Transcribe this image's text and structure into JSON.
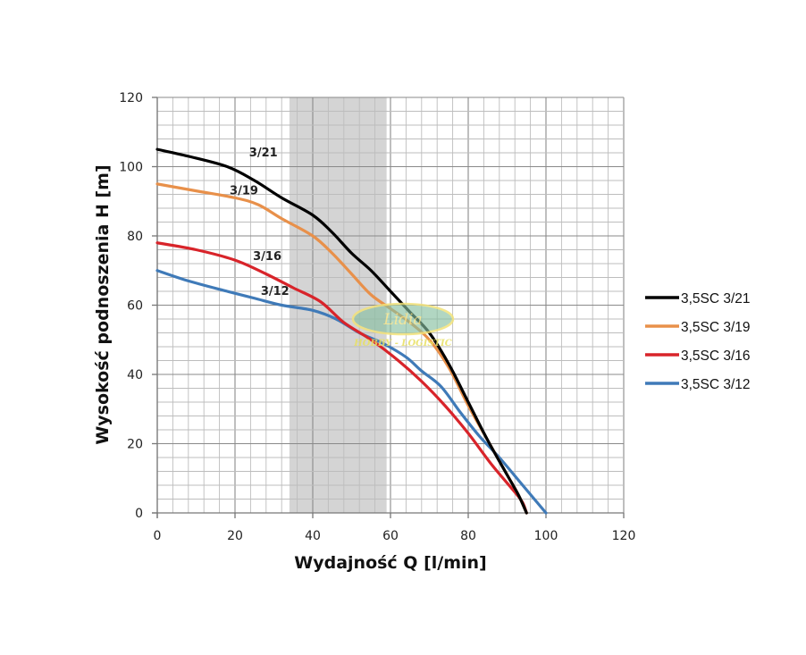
{
  "chart_data": {
    "type": "line",
    "title": "",
    "xlabel": "Wydajność Q [l/min]",
    "ylabel": "Wysokość podnoszenia H [m]",
    "xlim": [
      0,
      120
    ],
    "ylim": [
      0,
      120
    ],
    "x_ticks": [
      "0",
      "20",
      "40",
      "60",
      "80",
      "100",
      "120"
    ],
    "y_ticks": [
      "0",
      "20",
      "40",
      "60",
      "80",
      "100",
      "120"
    ],
    "grid": true,
    "grid_minor_step": 4,
    "shaded_range": [
      34,
      59
    ],
    "legend_position": "right",
    "series": [
      {
        "name": "3,5SC 3/21",
        "label": "3/21",
        "color": "#000000",
        "points": [
          [
            0,
            105
          ],
          [
            8,
            103
          ],
          [
            18,
            100
          ],
          [
            25,
            96
          ],
          [
            32,
            91
          ],
          [
            40,
            86
          ],
          [
            45,
            81
          ],
          [
            50,
            75
          ],
          [
            55,
            70
          ],
          [
            60,
            64
          ],
          [
            65,
            58
          ],
          [
            70,
            52
          ],
          [
            75,
            43
          ],
          [
            80,
            32
          ],
          [
            85,
            21
          ],
          [
            90,
            11
          ],
          [
            93,
            5
          ],
          [
            95,
            0
          ]
        ]
      },
      {
        "name": "3,5SC 3/19",
        "label": "3/19",
        "color": "#e8904a",
        "points": [
          [
            0,
            95
          ],
          [
            10,
            93
          ],
          [
            20,
            91
          ],
          [
            26,
            89
          ],
          [
            32,
            85
          ],
          [
            40,
            80
          ],
          [
            45,
            75
          ],
          [
            50,
            69
          ],
          [
            55,
            63
          ],
          [
            60,
            59
          ],
          [
            65,
            55
          ],
          [
            70,
            50
          ],
          [
            75,
            42
          ],
          [
            80,
            31
          ],
          [
            85,
            21
          ],
          [
            90,
            11
          ],
          [
            93,
            5
          ],
          [
            95,
            0
          ]
        ]
      },
      {
        "name": "3,5SC 3/16",
        "label": "3/16",
        "color": "#d8242a",
        "points": [
          [
            0,
            78
          ],
          [
            10,
            76
          ],
          [
            20,
            73
          ],
          [
            28,
            69
          ],
          [
            35,
            65
          ],
          [
            42,
            61
          ],
          [
            48,
            55
          ],
          [
            55,
            50
          ],
          [
            62,
            44
          ],
          [
            68,
            38
          ],
          [
            74,
            31
          ],
          [
            80,
            23
          ],
          [
            86,
            14
          ],
          [
            92,
            6
          ],
          [
            94,
            3
          ],
          [
            95,
            0
          ]
        ]
      },
      {
        "name": "3,5SC 3/12",
        "label": "3/12",
        "color": "#3f7ab8",
        "points": [
          [
            0,
            70
          ],
          [
            8,
            67
          ],
          [
            18,
            64
          ],
          [
            25,
            62
          ],
          [
            32,
            60
          ],
          [
            40,
            58.5
          ],
          [
            46,
            56
          ],
          [
            52,
            52
          ],
          [
            58,
            49
          ],
          [
            64,
            45
          ],
          [
            68,
            41
          ],
          [
            73,
            36.5
          ],
          [
            78,
            29
          ],
          [
            83,
            22
          ],
          [
            88,
            16
          ],
          [
            94,
            8
          ],
          [
            100,
            0
          ]
        ]
      }
    ]
  },
  "watermark": {
    "logo_text": "Lidia",
    "sub_text": "HOBBY - LOGISTIC"
  }
}
